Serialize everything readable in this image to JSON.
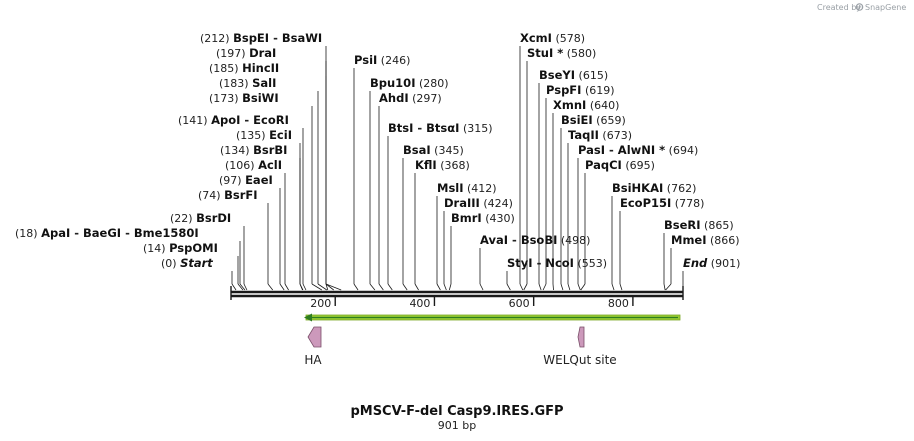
{
  "app": {
    "credit": "Created by",
    "brand": "SnapGene"
  },
  "map": {
    "title": "pMSCV-F-del Casp9.IRES.GFP",
    "length_label": "901 bp",
    "length": 901,
    "ticks": [
      {
        "pos": 200,
        "label": "200"
      },
      {
        "pos": 400,
        "label": "400"
      },
      {
        "pos": 600,
        "label": "600"
      },
      {
        "pos": 800,
        "label": "800"
      }
    ],
    "sites": [
      {
        "pos": 212,
        "pos_label": "(212)",
        "names": [
          "BspEI",
          "BsaWI"
        ]
      },
      {
        "pos": 197,
        "pos_label": "(197)",
        "names": [
          "DraI"
        ]
      },
      {
        "pos": 185,
        "pos_label": "(185)",
        "names": [
          "HincII"
        ]
      },
      {
        "pos": 183,
        "pos_label": "(183)",
        "names": [
          "SalI"
        ]
      },
      {
        "pos": 173,
        "pos_label": "(173)",
        "names": [
          "BsiWI"
        ]
      },
      {
        "pos": 141,
        "pos_label": "(141)",
        "names": [
          "ApoI",
          "EcoRI"
        ]
      },
      {
        "pos": 135,
        "pos_label": "(135)",
        "names": [
          "EciI"
        ]
      },
      {
        "pos": 134,
        "pos_label": "(134)",
        "names": [
          "BsrBI"
        ]
      },
      {
        "pos": 106,
        "pos_label": "(106)",
        "names": [
          "AclI"
        ]
      },
      {
        "pos": 97,
        "pos_label": "(97)",
        "names": [
          "EaeI"
        ]
      },
      {
        "pos": 74,
        "pos_label": "(74)",
        "names": [
          "BsrFI"
        ]
      },
      {
        "pos": 22,
        "pos_label": "(22)",
        "names": [
          "BsrDI"
        ]
      },
      {
        "pos": 18,
        "pos_label": "(18)",
        "names": [
          "ApaI",
          "BaeGI",
          "Bme1580I"
        ]
      },
      {
        "pos": 14,
        "pos_label": "(14)",
        "names": [
          "PspOMI"
        ]
      },
      {
        "pos": 0,
        "pos_label": "(0)",
        "names": [
          "Start"
        ],
        "italic": true
      },
      {
        "pos": 246,
        "pos_label": "(246)",
        "names": [
          "PsiI"
        ]
      },
      {
        "pos": 280,
        "pos_label": "(280)",
        "names": [
          "Bpu10I"
        ]
      },
      {
        "pos": 297,
        "pos_label": "(297)",
        "names": [
          "AhdI"
        ]
      },
      {
        "pos": 315,
        "pos_label": "(315)",
        "names": [
          "BtsI",
          "BtsαI"
        ]
      },
      {
        "pos": 345,
        "pos_label": "(345)",
        "names": [
          "BsaI"
        ]
      },
      {
        "pos": 368,
        "pos_label": "(368)",
        "names": [
          "KflI"
        ]
      },
      {
        "pos": 412,
        "pos_label": "(412)",
        "names": [
          "MslI"
        ]
      },
      {
        "pos": 424,
        "pos_label": "(424)",
        "names": [
          "DraIII"
        ]
      },
      {
        "pos": 430,
        "pos_label": "(430)",
        "names": [
          "BmrI"
        ]
      },
      {
        "pos": 498,
        "pos_label": "(498)",
        "names": [
          "AvaI",
          "BsoBI"
        ]
      },
      {
        "pos": 553,
        "pos_label": "(553)",
        "names": [
          "StyI",
          "NcoI"
        ]
      },
      {
        "pos": 578,
        "pos_label": "(578)",
        "names": [
          "XcmI"
        ]
      },
      {
        "pos": 580,
        "pos_label": "(580)",
        "names": [
          "StuI *"
        ]
      },
      {
        "pos": 615,
        "pos_label": "(615)",
        "names": [
          "BseYI"
        ]
      },
      {
        "pos": 619,
        "pos_label": "(619)",
        "names": [
          "PspFI"
        ]
      },
      {
        "pos": 640,
        "pos_label": "(640)",
        "names": [
          "XmnI"
        ]
      },
      {
        "pos": 659,
        "pos_label": "(659)",
        "names": [
          "BsiEI"
        ]
      },
      {
        "pos": 673,
        "pos_label": "(673)",
        "names": [
          "TaqII"
        ]
      },
      {
        "pos": 694,
        "pos_label": "(694)",
        "names": [
          "PasI",
          "AlwNI *"
        ]
      },
      {
        "pos": 695,
        "pos_label": "(695)",
        "names": [
          "PaqCI"
        ]
      },
      {
        "pos": 762,
        "pos_label": "(762)",
        "names": [
          "BsiHKAI"
        ]
      },
      {
        "pos": 778,
        "pos_label": "(778)",
        "names": [
          "EcoP15I"
        ]
      },
      {
        "pos": 865,
        "pos_label": "(865)",
        "names": [
          "BseRI"
        ]
      },
      {
        "pos": 866,
        "pos_label": "(866)",
        "names": [
          "MmeI"
        ]
      },
      {
        "pos": 901,
        "pos_label": "(901)",
        "names": [
          "End"
        ],
        "italic": true
      }
    ],
    "features": [
      {
        "name": "HA",
        "direction": "reverse",
        "color": "#cc99bb"
      },
      {
        "name": "WELQut site",
        "direction": "reverse",
        "color": "#cc99bb"
      }
    ],
    "orf": {
      "direction": "reverse",
      "color": "#99cc33",
      "core_color": "#2e7d20"
    },
    "backbone_color": "#1a1a1a"
  }
}
